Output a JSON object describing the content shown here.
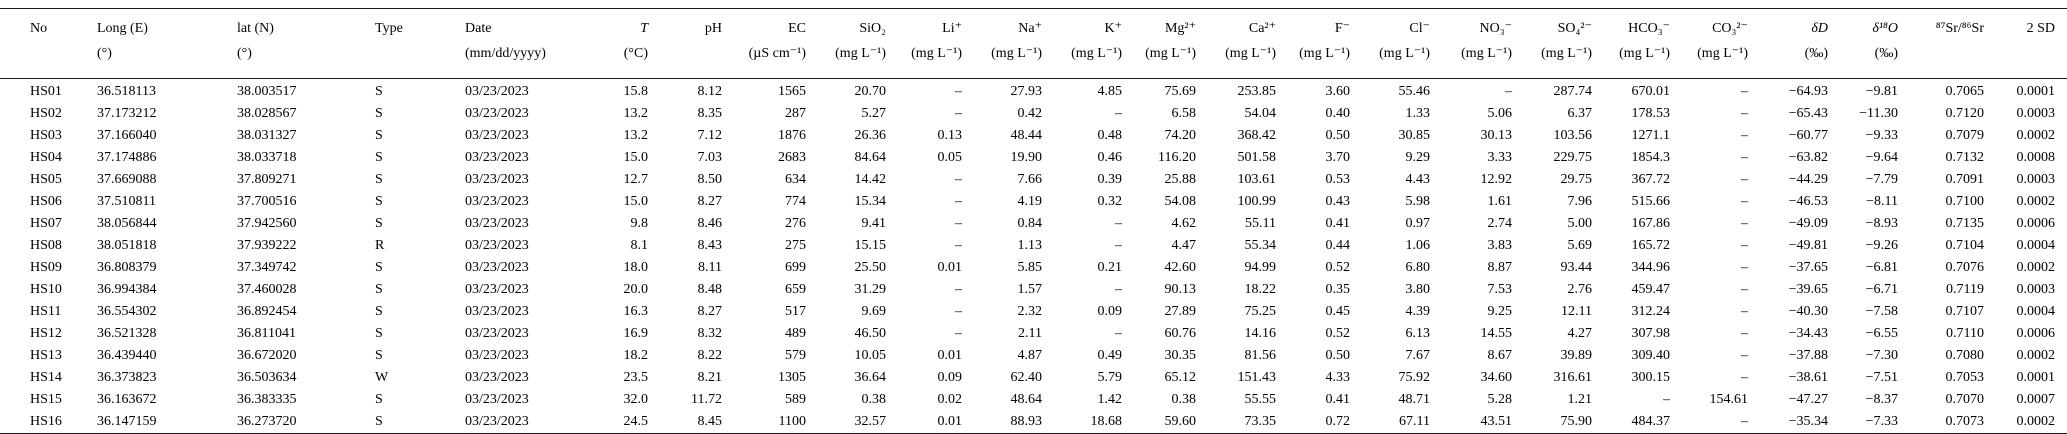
{
  "table": {
    "columns": [
      {
        "key": "no",
        "name": "No",
        "unit": "",
        "align": "left"
      },
      {
        "key": "long-e",
        "name": "Long (E)",
        "unit": "(°)",
        "align": "left"
      },
      {
        "key": "lat-n",
        "name": "lat (N)",
        "unit": "(°)",
        "align": "left"
      },
      {
        "key": "type",
        "name": "Type",
        "unit": "",
        "align": "left"
      },
      {
        "key": "date",
        "name": "Date",
        "unit": "(mm/dd/yyyy)",
        "align": "left"
      },
      {
        "key": "temp",
        "name": "T",
        "unit": "(°C)",
        "align": "right",
        "italic": true
      },
      {
        "key": "ph",
        "name": "pH",
        "unit": "",
        "align": "right"
      },
      {
        "key": "ec",
        "name": "EC",
        "unit": "(µS cm⁻¹)",
        "align": "right"
      },
      {
        "key": "sio2",
        "name": "SiO₂",
        "unit": "(mg L⁻¹)",
        "align": "right"
      },
      {
        "key": "li",
        "name": "Li⁺",
        "unit": "(mg L⁻¹)",
        "align": "right"
      },
      {
        "key": "na",
        "name": "Na⁺",
        "unit": "(mg L⁻¹)",
        "align": "right"
      },
      {
        "key": "k",
        "name": "K⁺",
        "unit": "(mg L⁻¹)",
        "align": "right"
      },
      {
        "key": "mg",
        "name": "Mg²⁺",
        "unit": "(mg L⁻¹)",
        "align": "right"
      },
      {
        "key": "ca",
        "name": "Ca²⁺",
        "unit": "(mg L⁻¹)",
        "align": "right"
      },
      {
        "key": "f",
        "name": "F⁻",
        "unit": "(mg L⁻¹)",
        "align": "right"
      },
      {
        "key": "cl",
        "name": "Cl⁻",
        "unit": "(mg L⁻¹)",
        "align": "right"
      },
      {
        "key": "no3",
        "name": "NO₃⁻",
        "unit": "(mg L⁻¹)",
        "align": "right"
      },
      {
        "key": "so4",
        "name": "SO₄²⁻",
        "unit": "(mg L⁻¹)",
        "align": "right"
      },
      {
        "key": "hco3",
        "name": "HCO₃⁻",
        "unit": "(mg L⁻¹)",
        "align": "right"
      },
      {
        "key": "co3",
        "name": "CO₃²⁻",
        "unit": "(mg L⁻¹)",
        "align": "right"
      },
      {
        "key": "dd",
        "name": "δD",
        "unit": "(‰)",
        "align": "right",
        "italic": true
      },
      {
        "key": "d18o",
        "name": "δ¹⁸O",
        "unit": "(‰)",
        "align": "right",
        "italic": true
      },
      {
        "key": "sr-ratio",
        "name": "⁸⁷Sr/⁸⁶Sr",
        "unit": "",
        "align": "right"
      },
      {
        "key": "2sd",
        "name": "2 SD",
        "unit": "",
        "align": "right"
      }
    ],
    "rows": [
      [
        "HS01",
        "36.518113",
        "38.003517",
        "S",
        "03/23/2023",
        "15.8",
        "8.12",
        "1565",
        "20.70",
        "–",
        "27.93",
        "4.85",
        "75.69",
        "253.85",
        "3.60",
        "55.46",
        "–",
        "287.74",
        "670.01",
        "–",
        "−64.93",
        "−9.81",
        "0.7065",
        "0.0001"
      ],
      [
        "HS02",
        "37.173212",
        "38.028567",
        "S",
        "03/23/2023",
        "13.2",
        "8.35",
        "287",
        "5.27",
        "–",
        "0.42",
        "–",
        "6.58",
        "54.04",
        "0.40",
        "1.33",
        "5.06",
        "6.37",
        "178.53",
        "–",
        "−65.43",
        "−11.30",
        "0.7120",
        "0.0003"
      ],
      [
        "HS03",
        "37.166040",
        "38.031327",
        "S",
        "03/23/2023",
        "13.2",
        "7.12",
        "1876",
        "26.36",
        "0.13",
        "48.44",
        "0.48",
        "74.20",
        "368.42",
        "0.50",
        "30.85",
        "30.13",
        "103.56",
        "1271.1",
        "–",
        "−60.77",
        "−9.33",
        "0.7079",
        "0.0002"
      ],
      [
        "HS04",
        "37.174886",
        "38.033718",
        "S",
        "03/23/2023",
        "15.0",
        "7.03",
        "2683",
        "84.64",
        "0.05",
        "19.90",
        "0.46",
        "116.20",
        "501.58",
        "3.70",
        "9.29",
        "3.33",
        "229.75",
        "1854.3",
        "–",
        "−63.82",
        "−9.64",
        "0.7132",
        "0.0008"
      ],
      [
        "HS05",
        "37.669088",
        "37.809271",
        "S",
        "03/23/2023",
        "12.7",
        "8.50",
        "634",
        "14.42",
        "–",
        "7.66",
        "0.39",
        "25.88",
        "103.61",
        "0.53",
        "4.43",
        "12.92",
        "29.75",
        "367.72",
        "–",
        "−44.29",
        "−7.79",
        "0.7091",
        "0.0003"
      ],
      [
        "HS06",
        "37.510811",
        "37.700516",
        "S",
        "03/23/2023",
        "15.0",
        "8.27",
        "774",
        "15.34",
        "–",
        "4.19",
        "0.32",
        "54.08",
        "100.99",
        "0.43",
        "5.98",
        "1.61",
        "7.96",
        "515.66",
        "–",
        "−46.53",
        "−8.11",
        "0.7100",
        "0.0002"
      ],
      [
        "HS07",
        "38.056844",
        "37.942560",
        "S",
        "03/23/2023",
        "9.8",
        "8.46",
        "276",
        "9.41",
        "–",
        "0.84",
        "–",
        "4.62",
        "55.11",
        "0.41",
        "0.97",
        "2.74",
        "5.00",
        "167.86",
        "–",
        "−49.09",
        "−8.93",
        "0.7135",
        "0.0006"
      ],
      [
        "HS08",
        "38.051818",
        "37.939222",
        "R",
        "03/23/2023",
        "8.1",
        "8.43",
        "275",
        "15.15",
        "–",
        "1.13",
        "–",
        "4.47",
        "55.34",
        "0.44",
        "1.06",
        "3.83",
        "5.69",
        "165.72",
        "–",
        "−49.81",
        "−9.26",
        "0.7104",
        "0.0004"
      ],
      [
        "HS09",
        "36.808379",
        "37.349742",
        "S",
        "03/23/2023",
        "18.0",
        "8.11",
        "699",
        "25.50",
        "0.01",
        "5.85",
        "0.21",
        "42.60",
        "94.99",
        "0.52",
        "6.80",
        "8.87",
        "93.44",
        "344.96",
        "–",
        "−37.65",
        "−6.81",
        "0.7076",
        "0.0002"
      ],
      [
        "HS10",
        "36.994384",
        "37.460028",
        "S",
        "03/23/2023",
        "20.0",
        "8.48",
        "659",
        "31.29",
        "–",
        "1.57",
        "–",
        "90.13",
        "18.22",
        "0.35",
        "3.80",
        "7.53",
        "2.76",
        "459.47",
        "–",
        "−39.65",
        "−6.71",
        "0.7119",
        "0.0003"
      ],
      [
        "HS11",
        "36.554302",
        "36.892454",
        "S",
        "03/23/2023",
        "16.3",
        "8.27",
        "517",
        "9.69",
        "–",
        "2.32",
        "0.09",
        "27.89",
        "75.25",
        "0.45",
        "4.39",
        "9.25",
        "12.11",
        "312.24",
        "–",
        "−40.30",
        "−7.58",
        "0.7107",
        "0.0004"
      ],
      [
        "HS12",
        "36.521328",
        "36.811041",
        "S",
        "03/23/2023",
        "16.9",
        "8.32",
        "489",
        "46.50",
        "–",
        "2.11",
        "–",
        "60.76",
        "14.16",
        "0.52",
        "6.13",
        "14.55",
        "4.27",
        "307.98",
        "–",
        "−34.43",
        "−6.55",
        "0.7110",
        "0.0006"
      ],
      [
        "HS13",
        "36.439440",
        "36.672020",
        "S",
        "03/23/2023",
        "18.2",
        "8.22",
        "579",
        "10.05",
        "0.01",
        "4.87",
        "0.49",
        "30.35",
        "81.56",
        "0.50",
        "7.67",
        "8.67",
        "39.89",
        "309.40",
        "–",
        "−37.88",
        "−7.30",
        "0.7080",
        "0.0002"
      ],
      [
        "HS14",
        "36.373823",
        "36.503634",
        "W",
        "03/23/2023",
        "23.5",
        "8.21",
        "1305",
        "36.64",
        "0.09",
        "62.40",
        "5.79",
        "65.12",
        "151.43",
        "4.33",
        "75.92",
        "34.60",
        "316.61",
        "300.15",
        "–",
        "−38.61",
        "−7.51",
        "0.7053",
        "0.0001"
      ],
      [
        "HS15",
        "36.163672",
        "36.383335",
        "S",
        "03/23/2023",
        "32.0",
        "11.72",
        "589",
        "0.38",
        "0.02",
        "48.64",
        "1.42",
        "0.38",
        "55.55",
        "0.41",
        "48.71",
        "5.28",
        "1.21",
        "–",
        "154.61",
        "−47.27",
        "−8.37",
        "0.7070",
        "0.0007"
      ],
      [
        "HS16",
        "36.147159",
        "36.273720",
        "S",
        "03/23/2023",
        "24.5",
        "8.45",
        "1100",
        "32.57",
        "0.01",
        "88.93",
        "18.68",
        "59.60",
        "73.35",
        "0.72",
        "67.11",
        "43.51",
        "75.90",
        "484.37",
        "–",
        "−35.34",
        "−7.33",
        "0.7073",
        "0.0002"
      ]
    ]
  }
}
